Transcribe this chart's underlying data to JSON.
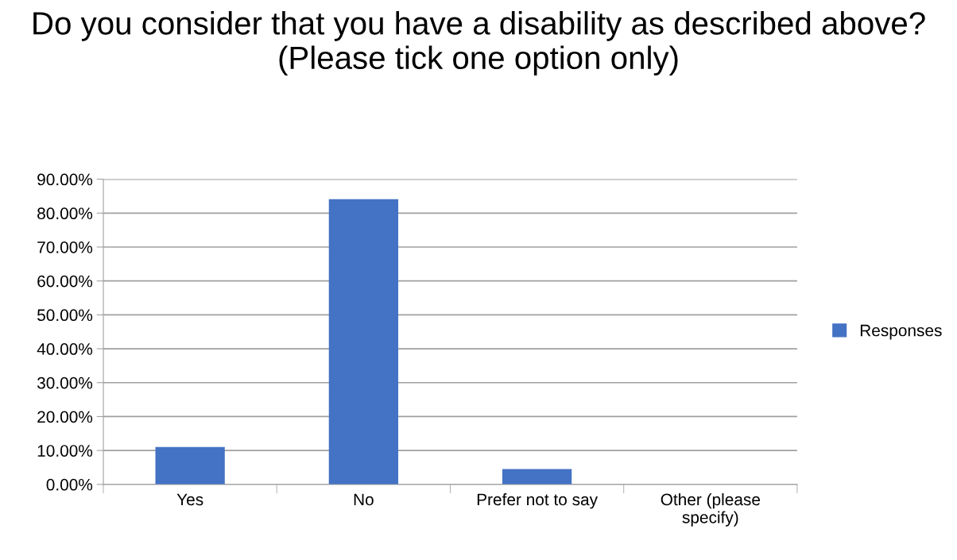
{
  "chart_data": {
    "type": "bar",
    "title": "Do you consider that you have a disability as described above? (Please tick one option only)",
    "categories": [
      "Yes",
      "No",
      "Prefer not to say",
      "Other (please\nspecify)"
    ],
    "series": [
      {
        "name": "Responses",
        "color": "#4472c4",
        "values": [
          11.0,
          84.1,
          4.5,
          0
        ]
      }
    ],
    "ylim": [
      0,
      90
    ],
    "yticks": [
      {
        "value": 0,
        "label": "0.00%"
      },
      {
        "value": 10,
        "label": "10.00%"
      },
      {
        "value": 20,
        "label": "20.00%"
      },
      {
        "value": 30,
        "label": "30.00%"
      },
      {
        "value": 40,
        "label": "40.00%"
      },
      {
        "value": 50,
        "label": "50.00%"
      },
      {
        "value": 60,
        "label": "60.00%"
      },
      {
        "value": 70,
        "label": "70.00%"
      },
      {
        "value": 80,
        "label": "80.00%"
      },
      {
        "value": 90,
        "label": "90.00%"
      }
    ],
    "grid": "y",
    "legend": "right"
  }
}
